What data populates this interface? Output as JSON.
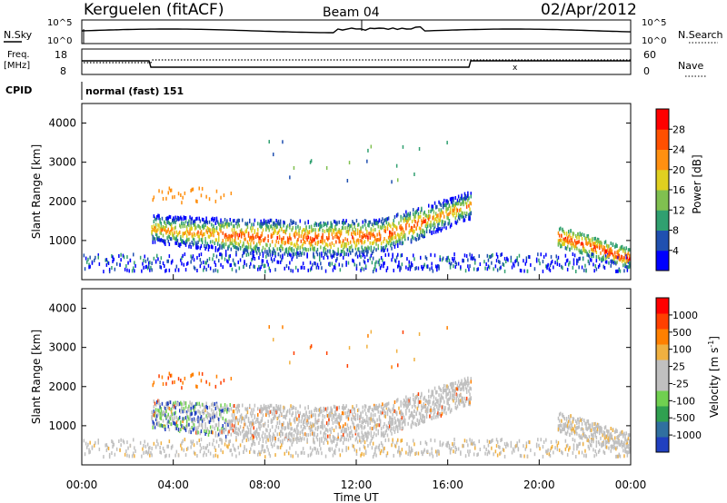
{
  "header": {
    "station": "Kerguelen (fitACF)",
    "beam": "Beam 04",
    "date": "02/Apr/2012"
  },
  "noise_panel": {
    "left_label": "N.Sky",
    "right_label": "N.Search",
    "left_ticks": [
      "10^5",
      "10^0"
    ],
    "right_ticks": [
      "10^5",
      "10^0"
    ]
  },
  "freq_panel": {
    "left_label_line1": "Freq.",
    "left_label_line2": "[MHz]",
    "left_ticks": [
      "18",
      "8"
    ],
    "right_ticks": [
      "60",
      "0"
    ],
    "right_label": "Nave"
  },
  "cpid": {
    "label": "CPID",
    "value": "normal (fast) 151"
  },
  "power_panel": {
    "ylabel": "Slant Range [km]",
    "yticks": [
      "4000",
      "3000",
      "2000",
      "1000"
    ],
    "colorbar_label": "Power [dB]",
    "colorbar_ticks": [
      "28",
      "24",
      "20",
      "16",
      "12",
      "8",
      "4"
    ],
    "colors": [
      "#0000ff",
      "#2050b0",
      "#30a070",
      "#80c050",
      "#e0d020",
      "#ff9010",
      "#ff5000",
      "#ff0000"
    ]
  },
  "velocity_panel": {
    "ylabel": "Slant Range [km]",
    "yticks": [
      "4000",
      "3000",
      "2000",
      "1000"
    ],
    "colorbar_label": "Velocity [m s",
    "colorbar_sup": "-1",
    "colorbar_label_end": "]",
    "colorbar_ticks": [
      "1000",
      "500",
      "100",
      "25",
      "-25",
      "-100",
      "-500",
      "-1000"
    ],
    "colors": [
      "#2040c0",
      "#3070a0",
      "#30a050",
      "#70d050",
      "#c0c0c0",
      "#c0c0c0",
      "#f0b040",
      "#ff8000",
      "#ff4000",
      "#ff0000"
    ]
  },
  "xaxis": {
    "ticks": [
      "00:00",
      "04:00",
      "08:00",
      "12:00",
      "16:00",
      "20:00",
      "00:00"
    ],
    "label": "Time UT"
  },
  "chart_data": {
    "type": "heatmap",
    "title": "Kerguelen (fitACF)",
    "x_range": [
      "00:00",
      "24:00"
    ],
    "y_range_km": [
      0,
      4500
    ],
    "power_db_range": [
      0,
      30
    ],
    "velocity_range": [
      -1000,
      1000
    ],
    "power_features": [
      {
        "t_start": 3.0,
        "t_end": 17.0,
        "range_center_km": 1300,
        "power_db": 26
      },
      {
        "t_start": 20.8,
        "t_end": 24.0,
        "range_center_km": 800,
        "power_db": 28
      }
    ]
  }
}
